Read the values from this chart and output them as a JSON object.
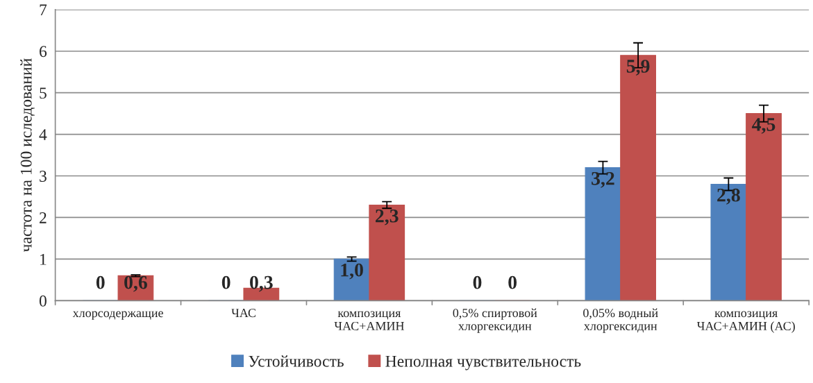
{
  "chart_data": {
    "type": "bar",
    "ylabel": "частота на 100 иследований",
    "categories": [
      "хлорсодержащие",
      "ЧАС",
      "композиция\nЧАС+АМИН",
      "0,5% спиртовой\nхлоргексидин",
      "0,05% водный\nхлоргексидин",
      "композиция\nЧАС+АМИН (АС)"
    ],
    "series": [
      {
        "name": "Устойчивость",
        "color": "#4f81bd",
        "values": [
          0,
          0,
          1.0,
          0,
          3.2,
          2.8
        ],
        "errors": [
          null,
          null,
          0.05,
          null,
          0.15,
          0.15
        ],
        "value_labels": [
          "0",
          "0",
          "1,0",
          "0",
          "3,2",
          "2,8"
        ]
      },
      {
        "name": "Неполная чувствительность",
        "color": "#c0504d",
        "values": [
          0.6,
          0.3,
          2.3,
          0,
          5.9,
          4.5
        ],
        "errors": [
          0.02,
          null,
          0.08,
          null,
          0.3,
          0.2
        ],
        "value_labels": [
          "0,6",
          "0,3",
          "2,3",
          "0",
          "5,9",
          "4,5"
        ]
      }
    ],
    "ylim": [
      0,
      7
    ],
    "yticks": [
      0,
      1,
      2,
      3,
      4,
      5,
      6,
      7
    ],
    "grid": "y",
    "legend": "bottom"
  }
}
